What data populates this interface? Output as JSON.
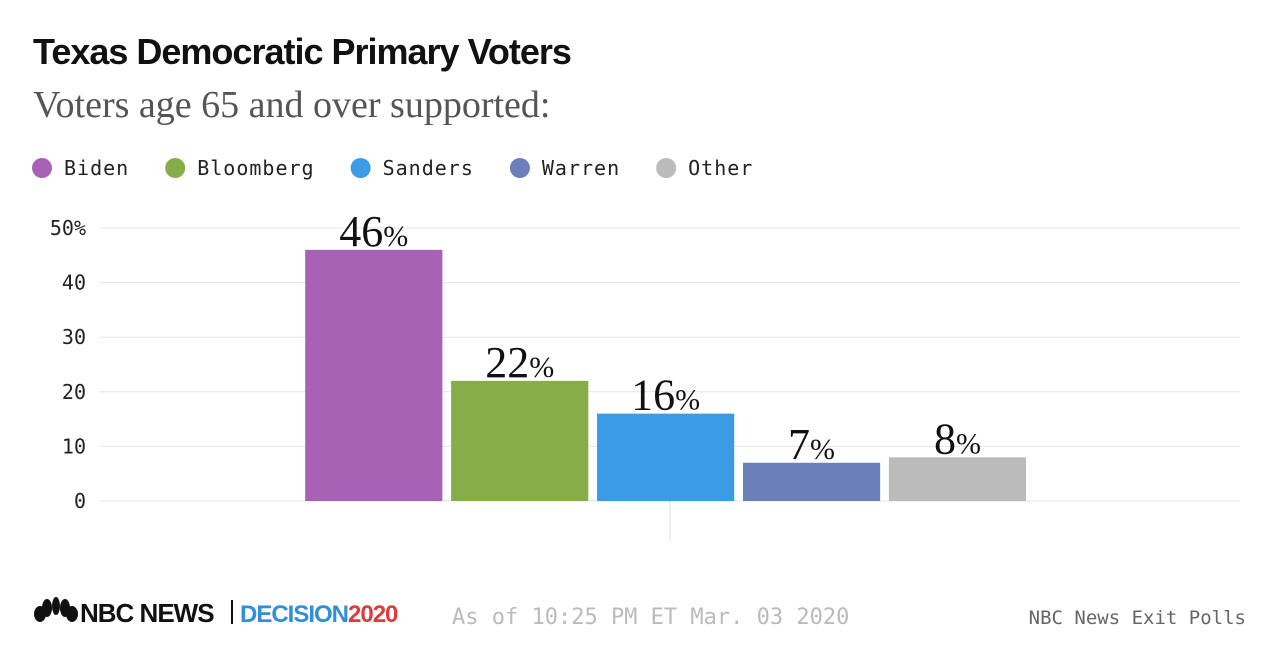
{
  "chart_data": {
    "type": "bar",
    "title": "Texas Democratic Primary Voters",
    "subtitle": "Voters age 65 and over supported:",
    "categories": [
      null
    ],
    "series": [
      {
        "name": "Biden",
        "color": "#a862b5",
        "values": [
          46
        ],
        "value_labels": [
          "46%"
        ]
      },
      {
        "name": "Bloomberg",
        "color": "#86ad48",
        "values": [
          22
        ],
        "value_labels": [
          "22%"
        ]
      },
      {
        "name": "Sanders",
        "color": "#3b9be4",
        "values": [
          16
        ],
        "value_labels": [
          "16%"
        ]
      },
      {
        "name": "Warren",
        "color": "#6b7fba",
        "values": [
          7
        ],
        "value_labels": [
          "7%"
        ]
      },
      {
        "name": "Other",
        "color": "#bbbbbb",
        "values": [
          8
        ],
        "value_labels": [
          "8%"
        ]
      }
    ],
    "ylim": [
      0,
      50
    ],
    "yticks": [
      0,
      10,
      20,
      30,
      40,
      {
        "value": 50,
        "label": "50%"
      }
    ],
    "grid": true,
    "legend": "top"
  },
  "footer": {
    "logo": "NBC NEWS",
    "badge": "DECISION2020",
    "timestamp": "As of 10:25 PM ET Mar. 03 2020",
    "source": "NBC News Exit Polls"
  }
}
